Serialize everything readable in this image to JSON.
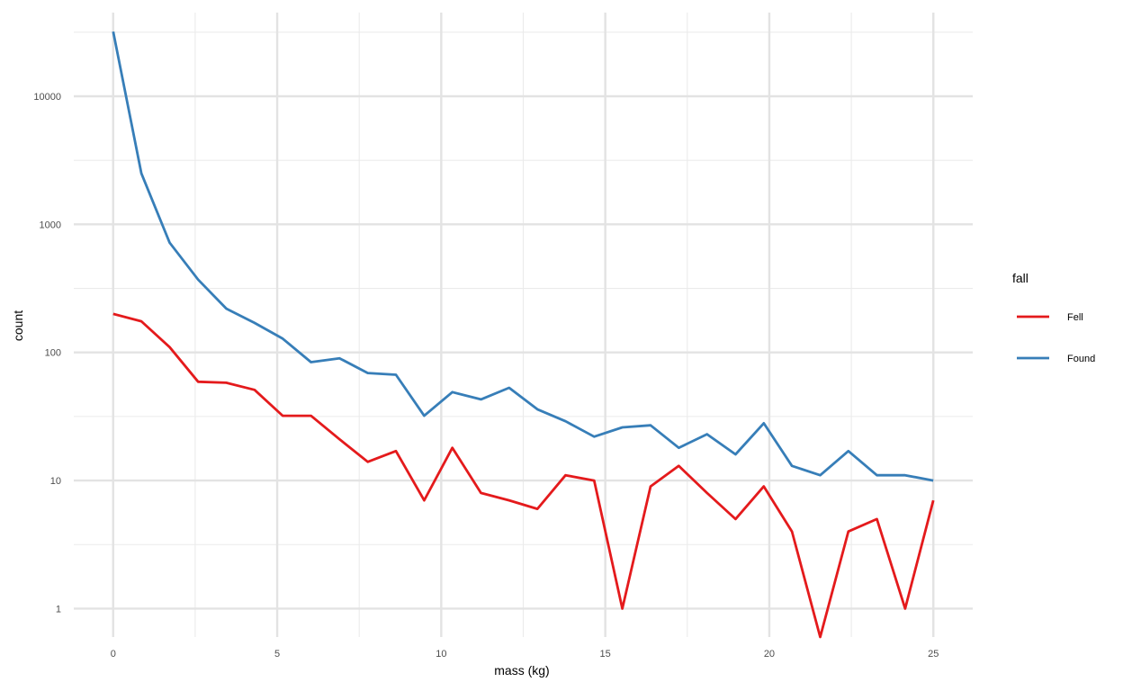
{
  "chart_data": {
    "type": "line",
    "xlabel": "mass (kg)",
    "ylabel": "count",
    "x_ticks": [
      "0",
      "5",
      "10",
      "15",
      "20",
      "25"
    ],
    "y_ticks": [
      "1",
      "10",
      "100",
      "1000",
      "10000"
    ],
    "y_scale": "log10",
    "xlim": [
      -1.2,
      26.2
    ],
    "ylim": [
      0.6,
      45000
    ],
    "grid": true,
    "legend": {
      "title": "fall",
      "placement": "right"
    },
    "x": [
      0,
      0.86,
      1.72,
      2.59,
      3.45,
      4.31,
      5.17,
      6.03,
      6.9,
      7.76,
      8.62,
      9.48,
      10.34,
      11.21,
      12.07,
      12.93,
      13.79,
      14.66,
      15.52,
      16.38,
      17.24,
      18.1,
      18.97,
      19.83,
      20.69,
      21.55,
      22.41,
      23.28,
      24.14,
      25.0
    ],
    "series": [
      {
        "name": "Fell",
        "color": "#e41a1c",
        "values": [
          200,
          175,
          110,
          59,
          58,
          51,
          32,
          32,
          21,
          14,
          17,
          7,
          18,
          8,
          7,
          6,
          11,
          10,
          1,
          9,
          13,
          8,
          5,
          9,
          4,
          0.6,
          4,
          5,
          1,
          7
        ]
      },
      {
        "name": "Found",
        "color": "#377eb8",
        "values": [
          32000,
          2500,
          720,
          370,
          220,
          170,
          128,
          84,
          90,
          69,
          67,
          32,
          49,
          43,
          53,
          36,
          29,
          22,
          26,
          27,
          18,
          23,
          16,
          28,
          13,
          11,
          17,
          11,
          11,
          10
        ]
      }
    ]
  }
}
